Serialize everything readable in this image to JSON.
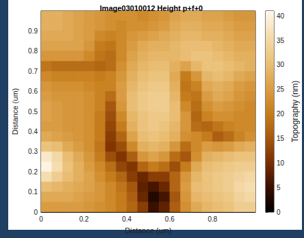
{
  "chart_data": {
    "type": "heatmap",
    "title": "Image03010012 Height p+f+0",
    "xlabel": "Distance (um)",
    "ylabel": "Distance (um)",
    "xlim": [
      0,
      1
    ],
    "ylim": [
      0,
      1
    ],
    "xticks": [
      0,
      0.2,
      0.4,
      0.6,
      0.8
    ],
    "yticks": [
      0,
      0.1,
      0.2,
      0.3,
      0.4,
      0.5,
      0.6,
      0.7,
      0.8,
      0.9
    ],
    "x": [
      0.025,
      0.075,
      0.125,
      0.175,
      0.225,
      0.275,
      0.325,
      0.375,
      0.425,
      0.475,
      0.525,
      0.575,
      0.625,
      0.675,
      0.725,
      0.775,
      0.825,
      0.875,
      0.925,
      0.975
    ],
    "y": [
      0.975,
      0.925,
      0.875,
      0.825,
      0.775,
      0.725,
      0.675,
      0.625,
      0.575,
      0.525,
      0.475,
      0.425,
      0.375,
      0.325,
      0.275,
      0.225,
      0.175,
      0.125,
      0.075,
      0.025
    ],
    "z": [
      [
        28,
        28,
        27,
        26,
        25,
        24,
        23,
        23,
        23,
        22,
        23,
        24,
        26,
        27,
        27,
        26,
        26,
        25,
        24,
        24
      ],
      [
        28,
        28,
        27,
        26,
        25,
        24,
        23,
        22,
        23,
        23,
        24,
        25,
        27,
        28,
        28,
        27,
        27,
        26,
        25,
        25
      ],
      [
        27,
        27,
        27,
        26,
        25,
        22,
        21,
        22,
        24,
        25,
        26,
        27,
        28,
        29,
        29,
        28,
        28,
        27,
        26,
        26
      ],
      [
        26,
        26,
        26,
        26,
        24,
        20,
        19,
        22,
        25,
        27,
        28,
        28,
        29,
        30,
        30,
        30,
        29,
        28,
        27,
        27
      ],
      [
        24,
        24,
        24,
        24,
        22,
        19,
        18,
        22,
        26,
        28,
        29,
        29,
        29,
        30,
        31,
        31,
        30,
        29,
        28,
        28
      ],
      [
        19,
        18,
        18,
        18,
        18,
        17,
        18,
        23,
        27,
        29,
        30,
        30,
        28,
        26,
        29,
        31,
        31,
        30,
        29,
        28
      ],
      [
        22,
        21,
        21,
        21,
        21,
        20,
        21,
        24,
        28,
        30,
        31,
        31,
        27,
        20,
        24,
        29,
        30,
        29,
        27,
        26
      ],
      [
        24,
        23,
        23,
        23,
        22,
        21,
        21,
        25,
        29,
        31,
        32,
        32,
        28,
        19,
        21,
        27,
        28,
        27,
        25,
        24
      ],
      [
        25,
        24,
        24,
        24,
        23,
        21,
        18,
        25,
        30,
        32,
        33,
        33,
        29,
        20,
        19,
        25,
        27,
        26,
        24,
        23
      ],
      [
        26,
        25,
        24,
        24,
        23,
        21,
        15,
        24,
        30,
        32,
        33,
        33,
        30,
        22,
        18,
        23,
        25,
        24,
        23,
        22
      ],
      [
        26,
        25,
        24,
        24,
        23,
        20,
        14,
        22,
        29,
        31,
        32,
        32,
        30,
        24,
        17,
        21,
        23,
        23,
        22,
        22
      ],
      [
        25,
        25,
        24,
        24,
        23,
        20,
        13,
        20,
        28,
        31,
        32,
        31,
        29,
        24,
        18,
        17,
        19,
        21,
        22,
        22
      ],
      [
        27,
        26,
        25,
        24,
        23,
        20,
        12,
        17,
        26,
        30,
        31,
        30,
        28,
        23,
        22,
        20,
        16,
        18,
        21,
        23
      ],
      [
        31,
        30,
        27,
        25,
        23,
        19,
        11,
        14,
        22,
        28,
        29,
        28,
        24,
        18,
        22,
        25,
        24,
        25,
        27,
        28
      ],
      [
        38,
        35,
        30,
        27,
        24,
        20,
        14,
        11,
        16,
        24,
        26,
        24,
        18,
        15,
        23,
        28,
        29,
        30,
        31,
        31
      ],
      [
        40,
        36,
        31,
        28,
        25,
        22,
        18,
        13,
        11,
        17,
        20,
        18,
        14,
        20,
        27,
        30,
        31,
        32,
        33,
        33
      ],
      [
        36,
        33,
        30,
        28,
        26,
        23,
        20,
        17,
        12,
        9,
        12,
        12,
        17,
        24,
        29,
        31,
        32,
        33,
        34,
        35
      ],
      [
        30,
        29,
        28,
        27,
        26,
        24,
        22,
        19,
        15,
        8,
        6,
        9,
        17,
        25,
        30,
        31,
        32,
        33,
        35,
        36
      ],
      [
        27,
        27,
        27,
        26,
        25,
        24,
        22,
        20,
        16,
        9,
        3,
        6,
        15,
        24,
        29,
        30,
        31,
        32,
        34,
        35
      ],
      [
        25,
        25,
        25,
        25,
        24,
        23,
        22,
        20,
        17,
        12,
        5,
        8,
        16,
        23,
        27,
        29,
        30,
        31,
        33,
        33
      ]
    ],
    "colorbar": {
      "label": "Topography (nm)",
      "lim": [
        0,
        41
      ],
      "ticks": [
        0,
        5,
        10,
        15,
        20,
        25,
        30,
        35,
        40
      ]
    }
  }
}
